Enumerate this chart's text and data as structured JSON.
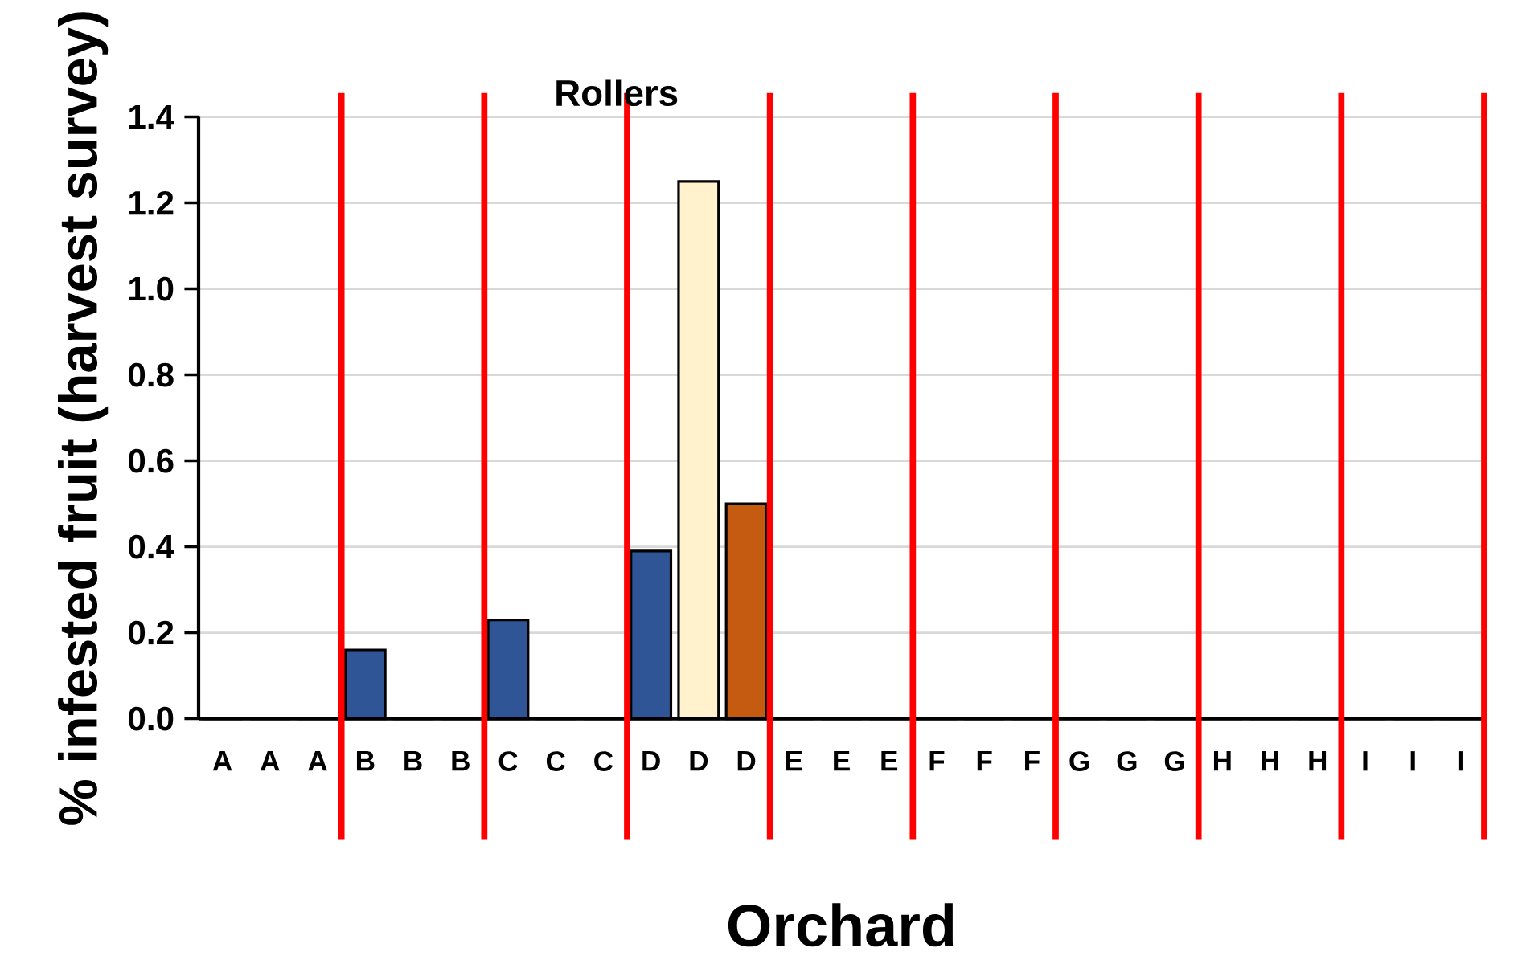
{
  "chart_data": {
    "type": "bar",
    "title": "Rollers",
    "xlabel": "Orchard",
    "ylabel": "% infested fruit (harvest survey)",
    "categories": [
      "A",
      "A",
      "A",
      "B",
      "B",
      "B",
      "C",
      "C",
      "C",
      "D",
      "D",
      "D",
      "E",
      "E",
      "E",
      "F",
      "F",
      "F",
      "G",
      "G",
      "G",
      "H",
      "H",
      "H",
      "I",
      "I",
      "I"
    ],
    "values": [
      0,
      0,
      0,
      0.16,
      0,
      0,
      0.23,
      0,
      0,
      0.39,
      1.25,
      0.5,
      0,
      0,
      0,
      0,
      0,
      0,
      0,
      0,
      0,
      0,
      0,
      0,
      0,
      0,
      0
    ],
    "colors": [
      "#000000",
      "#000000",
      "#000000",
      "#2f5597",
      "#000000",
      "#000000",
      "#2f5597",
      "#000000",
      "#000000",
      "#2f5597",
      "#fff2cc",
      "#c55a11",
      "#000000",
      "#000000",
      "#000000",
      "#000000",
      "#000000",
      "#000000",
      "#000000",
      "#000000",
      "#000000",
      "#000000",
      "#000000",
      "#000000",
      "#000000",
      "#000000",
      "#000000"
    ],
    "ylim": [
      0,
      1.4
    ],
    "yticks": [
      {
        "value": 0,
        "label": "0.0"
      },
      {
        "value": 0.2,
        "label": "0.2"
      },
      {
        "value": 0.4,
        "label": "0.4"
      },
      {
        "value": 0.6,
        "label": "0.6"
      },
      {
        "value": 0.8,
        "label": "0.8"
      },
      {
        "value": 1.0,
        "label": "1.0"
      },
      {
        "value": 1.2,
        "label": "1.2"
      },
      {
        "value": 1.4,
        "label": "1.4"
      }
    ],
    "grid": "y"
  }
}
